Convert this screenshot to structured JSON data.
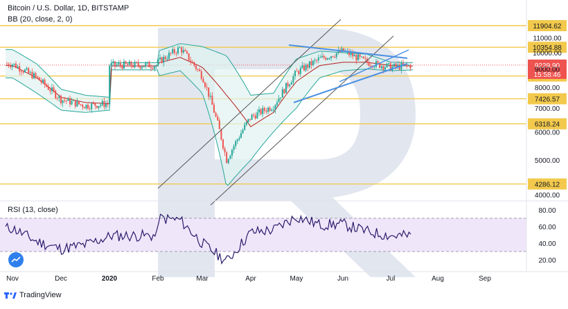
{
  "header": {
    "symbol_line": "Bitcoin / U.S. Dollar, 1D, BITSTAMP",
    "indicator_line": "BB (20, close, 2, 0)",
    "rsi_line": "RSI (13, close)"
  },
  "brand": {
    "name": "TradingView",
    "icon": "tradingview-logo-icon"
  },
  "colors": {
    "candle_up": "#26a69a",
    "candle_down": "#ef5350",
    "band": "#26a69a",
    "band_fill": "#e0f2f1",
    "basis": "#b71c1c",
    "level": "#f2c94c",
    "trend": "#4a90e2",
    "channel": "#555555",
    "rsi_line": "#2a1b6b",
    "rsi_fill": "#f0e6fa",
    "price_tag": "#ef5350",
    "watermark": "#dde2ec"
  },
  "chart_data": [
    {
      "type": "candlestick",
      "title": "Bitcoin / U.S. Dollar, 1D, BITSTAMP",
      "x_ticks": [
        "Nov",
        "Dec",
        "2020",
        "Feb",
        "Mar",
        "Apr",
        "May",
        "Jun",
        "Jul",
        "Aug",
        "Sep"
      ],
      "y_scale": "log",
      "y_ticks": [
        11000,
        10000,
        9000,
        8000,
        7000,
        6000,
        5000,
        4000
      ],
      "y_tick_labels": [
        "11000.00",
        "10000.00",
        "9000.00",
        "8000.00",
        "7000.00",
        "6000.00",
        "5000.00",
        "4000.00"
      ],
      "ylim": [
        3700,
        12300
      ],
      "levels": [
        {
          "value": 11904.62,
          "label": "11904.62"
        },
        {
          "value": 10354.88,
          "label": "10354.88"
        },
        {
          "value": 8600.29,
          "label": "8600.29"
        },
        {
          "value": 7426.57,
          "label": "7426.57"
        },
        {
          "value": 6318.24,
          "label": "6318.24"
        },
        {
          "value": 4286.12,
          "label": "4286.12"
        }
      ],
      "last_price": {
        "value": 9229.9,
        "label": "9229.90",
        "countdown": "15:58:46"
      },
      "series": [
        {
          "name": "BB upper",
          "points": [
            [
              "Nov",
              10200
            ],
            [
              "mid-Nov",
              9300
            ],
            [
              "Dec",
              7900
            ],
            [
              "mid-Dec",
              7600
            ],
            [
              "2020",
              7500
            ],
            [
              "mid-Jan",
              8700
            ],
            [
              "Feb",
              10100
            ],
            [
              "mid-Feb",
              10600
            ],
            [
              "Mar",
              10400
            ],
            [
              "mid-Mar",
              9800
            ],
            [
              "Apr",
              7600
            ],
            [
              "mid-Apr",
              7700
            ],
            [
              "May",
              9600
            ],
            [
              "mid-May",
              10100
            ],
            [
              "Jun",
              10000
            ],
            [
              "mid-Jun",
              9900
            ],
            [
              "Jul",
              9400
            ],
            [
              "mid-Jul",
              9380
            ]
          ]
        },
        {
          "name": "BB basis",
          "points": [
            [
              "Nov",
              9200
            ],
            [
              "mid-Nov",
              8500
            ],
            [
              "Dec",
              7500
            ],
            [
              "mid-Dec",
              7250
            ],
            [
              "2020",
              7200
            ],
            [
              "mid-Jan",
              8200
            ],
            [
              "Feb",
              9350
            ],
            [
              "mid-Feb",
              9700
            ],
            [
              "Mar",
              9100
            ],
            [
              "mid-Mar",
              7600
            ],
            [
              "Apr",
              6200
            ],
            [
              "mid-Apr",
              6800
            ],
            [
              "May",
              8300
            ],
            [
              "mid-May",
              9200
            ],
            [
              "Jun",
              9400
            ],
            [
              "mid-Jun",
              9400
            ],
            [
              "Jul",
              9200
            ],
            [
              "mid-Jul",
              9180
            ]
          ]
        },
        {
          "name": "BB lower",
          "points": [
            [
              "Nov",
              8500
            ],
            [
              "mid-Nov",
              7700
            ],
            [
              "Dec",
              6900
            ],
            [
              "mid-Dec",
              6800
            ],
            [
              "2020",
              6900
            ],
            [
              "mid-Jan",
              7500
            ],
            [
              "Feb",
              8600
            ],
            [
              "mid-Feb",
              8900
            ],
            [
              "Mar",
              7700
            ],
            [
              "mid-Mar",
              4200
            ],
            [
              "Apr",
              5000
            ],
            [
              "mid-Apr",
              6000
            ],
            [
              "May",
              7000
            ],
            [
              "mid-May",
              8500
            ],
            [
              "Jun",
              8900
            ],
            [
              "mid-Jun",
              9000
            ],
            [
              "Jul",
              8900
            ],
            [
              "mid-Jul",
              8950
            ]
          ]
        },
        {
          "name": "Price",
          "points": [
            [
              "Nov",
              9300
            ],
            [
              "mid-Nov",
              8500
            ],
            [
              "Dec",
              7400
            ],
            [
              "mid-Dec",
              7100
            ],
            [
              "2020",
              7200
            ],
            [
              "mid-Jan",
              8800
            ],
            [
              "Feb",
              9400
            ],
            [
              "mid-Feb",
              10300
            ],
            [
              "Mar",
              8600
            ],
            [
              "mid-Mar",
              5000
            ],
            [
              "Apr",
              6600
            ],
            [
              "mid-Apr",
              7100
            ],
            [
              "May",
              8800
            ],
            [
              "mid-May",
              9600
            ],
            [
              "Jun",
              10100
            ],
            [
              "mid-Jun",
              9400
            ],
            [
              "Jul",
              9100
            ],
            [
              "mid-Jul",
              9229.9
            ]
          ]
        }
      ],
      "grid": false
    },
    {
      "type": "line",
      "title": "RSI (13, close)",
      "x_ticks": [
        "Nov",
        "Dec",
        "2020",
        "Feb",
        "Mar",
        "Apr",
        "May",
        "Jun",
        "Jul",
        "Aug",
        "Sep"
      ],
      "y_ticks": [
        80,
        60,
        40,
        20
      ],
      "y_tick_labels": [
        "80.00",
        "60.00",
        "40.00",
        "20.00"
      ],
      "ylim": [
        10,
        90
      ],
      "band": [
        30,
        70
      ],
      "series": [
        {
          "name": "RSI",
          "points": [
            [
              "Nov",
              58
            ],
            [
              "mid-Nov",
              42
            ],
            [
              "Dec",
              33
            ],
            [
              "mid-Dec",
              38
            ],
            [
              "2020",
              48
            ],
            [
              "mid-Jan",
              68
            ],
            [
              "Feb",
              70
            ],
            [
              "mid-Feb",
              68
            ],
            [
              "Mar",
              40
            ],
            [
              "mid-Mar",
              18
            ],
            [
              "Apr",
              53
            ],
            [
              "mid-Apr",
              56
            ],
            [
              "May",
              72
            ],
            [
              "mid-May",
              62
            ],
            [
              "Jun",
              63
            ],
            [
              "mid-Jun",
              54
            ],
            [
              "Jul",
              49
            ],
            [
              "mid-Jul",
              49
            ]
          ]
        }
      ]
    }
  ]
}
